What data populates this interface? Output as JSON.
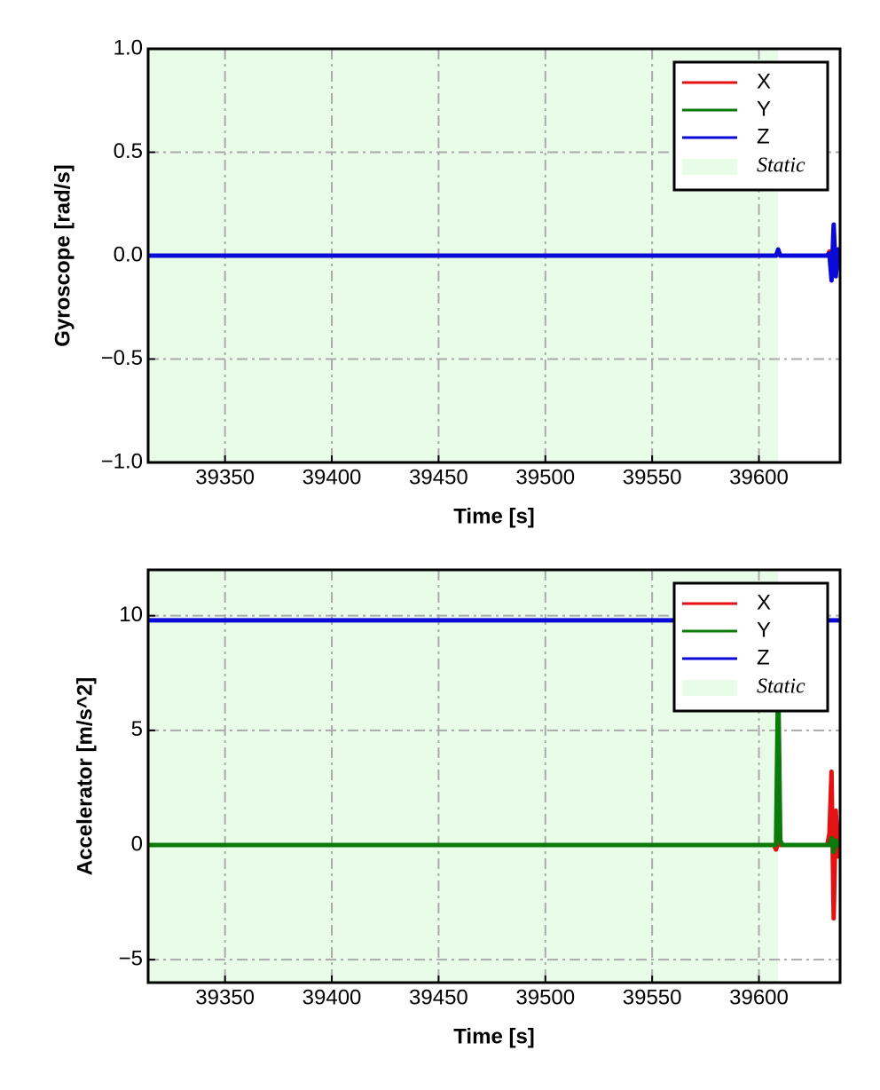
{
  "chart_data": [
    {
      "type": "line",
      "xlabel": "Time [s]",
      "ylabel": "Gyroscope [rad/s]",
      "x": [
        39314,
        39350,
        39400,
        39450,
        39500,
        39550,
        39600,
        39607,
        39608,
        39609,
        39610,
        39611,
        39615,
        39620,
        39625,
        39630,
        39632,
        39633,
        39634,
        39635,
        39636,
        39637,
        39638
      ],
      "series": [
        {
          "name": "X",
          "color": "#e41212",
          "values": [
            0,
            0,
            0,
            0,
            0,
            0,
            0,
            0,
            0,
            0.01,
            0,
            0,
            0,
            0,
            0,
            0,
            0,
            0.02,
            -0.05,
            0.06,
            -0.03,
            0.01,
            0
          ]
        },
        {
          "name": "Y",
          "color": "#0a7a0a",
          "values": [
            0,
            0,
            0,
            0,
            0,
            0,
            0,
            0,
            0,
            0.02,
            0,
            0,
            0,
            0,
            0,
            0,
            0,
            0.01,
            -0.03,
            0.04,
            -0.02,
            0,
            0
          ]
        },
        {
          "name": "Z",
          "color": "#0a0ad8",
          "values": [
            0,
            0,
            0,
            0,
            0,
            0,
            0,
            0,
            0,
            0.03,
            0,
            0,
            0,
            0,
            0,
            0,
            0,
            0.01,
            -0.12,
            0.15,
            -0.1,
            0.03,
            0
          ]
        }
      ],
      "span": {
        "label": "Static",
        "start": 39314,
        "end": 39609,
        "color": "#e8fce8"
      },
      "xlim": [
        39314,
        39638
      ],
      "ylim": [
        -1,
        1
      ],
      "xticks": [
        39350,
        39400,
        39450,
        39500,
        39550,
        39600
      ],
      "yticks": [
        {
          "value": -1,
          "label": "−1.0"
        },
        {
          "value": -0.5,
          "label": "−0.5"
        },
        {
          "value": 0,
          "label": "0.0"
        },
        {
          "value": 0.5,
          "label": "0.5"
        },
        {
          "value": 1,
          "label": "1.0"
        }
      ],
      "grid": true,
      "legend": "upper right"
    },
    {
      "type": "line",
      "xlabel": "Time [s]",
      "ylabel": "Accelerator [m/s^2]",
      "x": [
        39314,
        39350,
        39400,
        39450,
        39500,
        39550,
        39600,
        39607,
        39608,
        39609,
        39610,
        39611,
        39615,
        39620,
        39625,
        39630,
        39632,
        39633,
        39634,
        39635,
        39636,
        39637,
        39638
      ],
      "series": [
        {
          "name": "X",
          "color": "#e41212",
          "values": [
            0,
            0,
            0,
            0,
            0,
            0,
            0,
            0,
            -0.2,
            0.1,
            0,
            0,
            0,
            0,
            0,
            0,
            0,
            0.5,
            3.2,
            -3.2,
            1.5,
            -0.5,
            0
          ]
        },
        {
          "name": "Y",
          "color": "#0a7a0a",
          "values": [
            0,
            0,
            0,
            0,
            0,
            0,
            0,
            0,
            0,
            7.5,
            0.2,
            0,
            0,
            0,
            0,
            0,
            0,
            0,
            0.3,
            -0.3,
            0.2,
            0,
            0
          ]
        },
        {
          "name": "Z",
          "color": "#0a0ad8",
          "values": [
            9.8,
            9.8,
            9.8,
            9.8,
            9.8,
            9.8,
            9.8,
            9.8,
            9.8,
            9.8,
            9.8,
            9.8,
            9.8,
            9.8,
            9.8,
            9.8,
            9.8,
            9.8,
            9.8,
            9.8,
            9.8,
            9.8,
            9.8
          ]
        }
      ],
      "span": {
        "label": "Static",
        "start": 39314,
        "end": 39609,
        "color": "#e8fce8"
      },
      "xlim": [
        39314,
        39638
      ],
      "ylim": [
        -6,
        12
      ],
      "xticks": [
        39350,
        39400,
        39450,
        39500,
        39550,
        39600
      ],
      "yticks": [
        {
          "value": -5,
          "label": "−5"
        },
        0,
        5,
        10
      ],
      "grid": true,
      "legend": "upper right"
    }
  ]
}
